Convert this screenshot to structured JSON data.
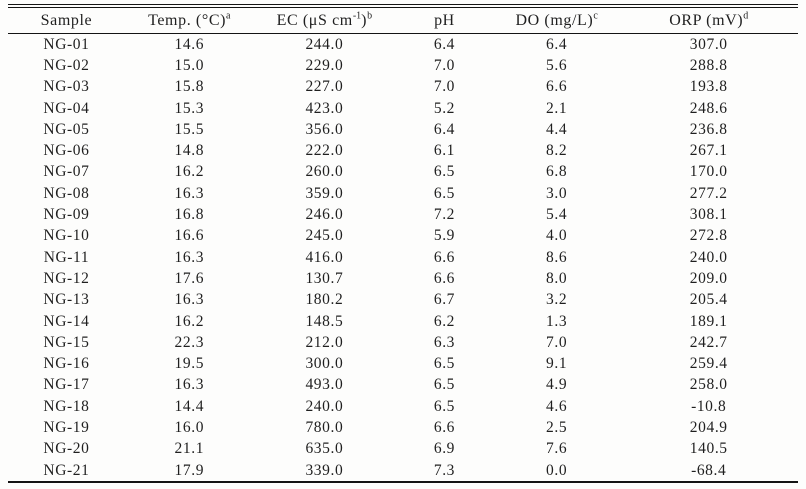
{
  "page": {
    "background": "#fdfdfc",
    "text_color": "#1f1f1f",
    "rule_color": "#141414"
  },
  "table": {
    "header": [
      {
        "key": "sample",
        "parts": [
          {
            "t": "Sample"
          }
        ]
      },
      {
        "key": "temp",
        "parts": [
          {
            "t": "Temp. (°C)"
          },
          {
            "t": "a",
            "sup": true
          }
        ]
      },
      {
        "key": "ec",
        "parts": [
          {
            "t": "EC (μS cm"
          },
          {
            "t": "-1",
            "sup": true
          },
          {
            "t": ")"
          },
          {
            "t": "b",
            "sup": true
          }
        ]
      },
      {
        "key": "ph",
        "parts": [
          {
            "t": "pH"
          }
        ]
      },
      {
        "key": "do",
        "parts": [
          {
            "t": "DO (mg/L)"
          },
          {
            "t": "c",
            "sup": true
          }
        ]
      },
      {
        "key": "orp",
        "parts": [
          {
            "t": "ORP (mV)"
          },
          {
            "t": "d",
            "sup": true
          }
        ]
      }
    ],
    "column_widths_percent": [
      14.8,
      16.3,
      17.9,
      12.5,
      15.9,
      22.6
    ],
    "rows": [
      [
        "NG-01",
        "14.6",
        "244.0",
        "6.4",
        "6.4",
        "307.0"
      ],
      [
        "NG-02",
        "15.0",
        "229.0",
        "7.0",
        "5.6",
        "288.8"
      ],
      [
        "NG-03",
        "15.8",
        "227.0",
        "7.0",
        "6.6",
        "193.8"
      ],
      [
        "NG-04",
        "15.3",
        "423.0",
        "5.2",
        "2.1",
        "248.6"
      ],
      [
        "NG-05",
        "15.5",
        "356.0",
        "6.4",
        "4.4",
        "236.8"
      ],
      [
        "NG-06",
        "14.8",
        "222.0",
        "6.1",
        "8.2",
        "267.1"
      ],
      [
        "NG-07",
        "16.2",
        "260.0",
        "6.5",
        "6.8",
        "170.0"
      ],
      [
        "NG-08",
        "16.3",
        "359.0",
        "6.5",
        "3.0",
        "277.2"
      ],
      [
        "NG-09",
        "16.8",
        "246.0",
        "7.2",
        "5.4",
        "308.1"
      ],
      [
        "NG-10",
        "16.6",
        "245.0",
        "5.9",
        "4.0",
        "272.8"
      ],
      [
        "NG-11",
        "16.3",
        "416.0",
        "6.6",
        "8.6",
        "240.0"
      ],
      [
        "NG-12",
        "17.6",
        "130.7",
        "6.6",
        "8.0",
        "209.0"
      ],
      [
        "NG-13",
        "16.3",
        "180.2",
        "6.7",
        "3.2",
        "205.4"
      ],
      [
        "NG-14",
        "16.2",
        "148.5",
        "6.2",
        "1.3",
        "189.1"
      ],
      [
        "NG-15",
        "22.3",
        "212.0",
        "6.3",
        "7.0",
        "242.7"
      ],
      [
        "NG-16",
        "19.5",
        "300.0",
        "6.5",
        "9.1",
        "259.4"
      ],
      [
        "NG-17",
        "16.3",
        "493.0",
        "6.5",
        "4.9",
        "258.0"
      ],
      [
        "NG-18",
        "14.4",
        "240.0",
        "6.5",
        "4.6",
        "-10.8"
      ],
      [
        "NG-19",
        "16.0",
        "780.0",
        "6.6",
        "2.5",
        "204.9"
      ],
      [
        "NG-20",
        "21.1",
        "635.0",
        "6.9",
        "7.6",
        "140.5"
      ],
      [
        "NG-21",
        "17.9",
        "339.0",
        "7.3",
        "0.0",
        "-68.4"
      ]
    ]
  }
}
